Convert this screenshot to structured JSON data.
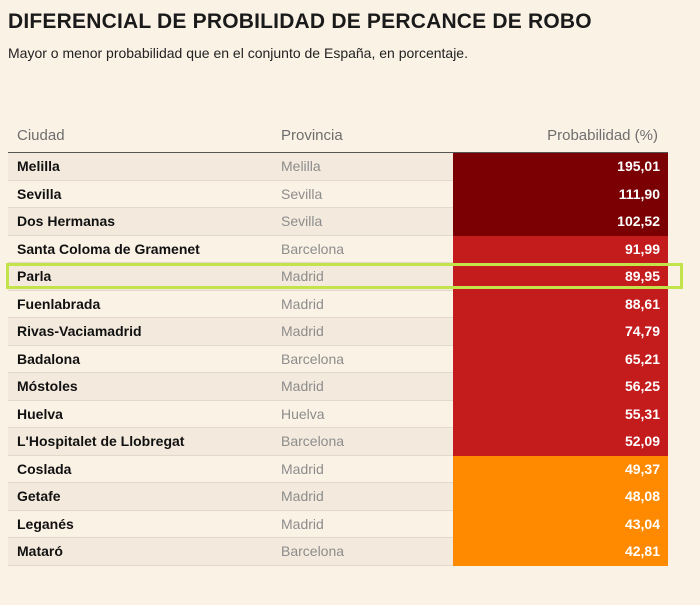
{
  "title": "DIFERENCIAL DE PROBILIDAD DE PERCANCE DE ROBO",
  "subtitle": "Mayor o menor probabilidad que en el conjunto de España, en porcentaje.",
  "columns": {
    "city": "Ciudad",
    "province": "Provincia",
    "probability": "Probabilidad (%)"
  },
  "colors": {
    "dark_red": "#7a0003",
    "red": "#c41b1c",
    "orange": "#ff8a00",
    "highlight": "#c3e34a"
  },
  "highlighted_city": "Parla",
  "chart_data": {
    "type": "table",
    "title": "DIFERENCIAL DE PROBILIDAD DE PERCANCE DE ROBO",
    "rows": [
      {
        "city": "Melilla",
        "province": "Melilla",
        "value": 195.01,
        "label": "195,01",
        "tier": "dark_red"
      },
      {
        "city": "Sevilla",
        "province": "Sevilla",
        "value": 111.9,
        "label": "111,90",
        "tier": "dark_red"
      },
      {
        "city": "Dos Hermanas",
        "province": "Sevilla",
        "value": 102.52,
        "label": "102,52",
        "tier": "dark_red"
      },
      {
        "city": "Santa Coloma de Gramenet",
        "province": "Barcelona",
        "value": 91.99,
        "label": "91,99",
        "tier": "red"
      },
      {
        "city": "Parla",
        "province": "Madrid",
        "value": 89.95,
        "label": "89,95",
        "tier": "red"
      },
      {
        "city": "Fuenlabrada",
        "province": "Madrid",
        "value": 88.61,
        "label": "88,61",
        "tier": "red"
      },
      {
        "city": "Rivas-Vaciamadrid",
        "province": "Madrid",
        "value": 74.79,
        "label": "74,79",
        "tier": "red"
      },
      {
        "city": "Badalona",
        "province": "Barcelona",
        "value": 65.21,
        "label": "65,21",
        "tier": "red"
      },
      {
        "city": "Móstoles",
        "province": "Madrid",
        "value": 56.25,
        "label": "56,25",
        "tier": "red"
      },
      {
        "city": "Huelva",
        "province": "Huelva",
        "value": 55.31,
        "label": "55,31",
        "tier": "red"
      },
      {
        "city": "L'Hospitalet de Llobregat",
        "province": "Barcelona",
        "value": 52.09,
        "label": "52,09",
        "tier": "red"
      },
      {
        "city": "Coslada",
        "province": "Madrid",
        "value": 49.37,
        "label": "49,37",
        "tier": "orange"
      },
      {
        "city": "Getafe",
        "province": "Madrid",
        "value": 48.08,
        "label": "48,08",
        "tier": "orange"
      },
      {
        "city": "Leganés",
        "province": "Madrid",
        "value": 43.04,
        "label": "43,04",
        "tier": "orange"
      },
      {
        "city": "Mataró",
        "province": "Barcelona",
        "value": 42.81,
        "label": "42,81",
        "tier": "orange"
      }
    ]
  }
}
